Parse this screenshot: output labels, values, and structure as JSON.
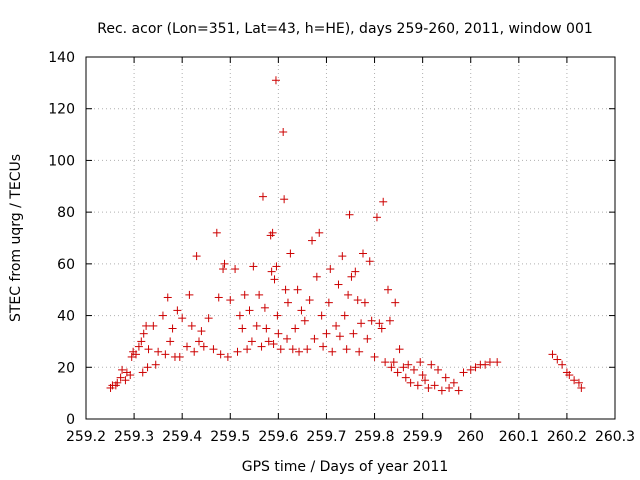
{
  "chart_data": {
    "type": "scatter",
    "title": "Rec. acor (Lon=351, Lat=43, h=HE), days 259-260, 2011, window 001",
    "xlabel": "GPS time / Days of year 2011",
    "ylabel": "STEC from uqrg / TECUs",
    "xlim": [
      259.2,
      260.3
    ],
    "ylim": [
      0,
      140
    ],
    "xticks": [
      259.2,
      259.3,
      259.4,
      259.5,
      259.6,
      259.7,
      259.8,
      259.9,
      260,
      260.1,
      260.2,
      260.3
    ],
    "xtick_labels": [
      "259.2",
      "259.3",
      "259.4",
      "259.5",
      "259.6",
      "259.7",
      "259.8",
      "259.9",
      "260",
      "260.1",
      "260.2",
      "260.3"
    ],
    "yticks": [
      0,
      20,
      40,
      60,
      80,
      100,
      120,
      140
    ],
    "ytick_labels": [
      "0",
      "20",
      "40",
      "60",
      "80",
      "100",
      "120",
      "140"
    ],
    "grid": true,
    "legend": "none",
    "marker": "plus",
    "color": "#cc0000",
    "series": [
      {
        "points": [
          [
            259.251,
            12
          ],
          [
            259.255,
            13
          ],
          [
            259.262,
            13
          ],
          [
            259.265,
            14
          ],
          [
            259.272,
            16
          ],
          [
            259.275,
            19
          ],
          [
            259.282,
            15
          ],
          [
            259.285,
            18
          ],
          [
            259.292,
            17
          ],
          [
            259.295,
            24
          ],
          [
            259.298,
            26
          ],
          [
            259.304,
            25
          ],
          [
            259.31,
            28
          ],
          [
            259.315,
            30
          ],
          [
            259.32,
            33
          ],
          [
            259.325,
            36
          ],
          [
            259.318,
            18
          ],
          [
            259.328,
            20
          ],
          [
            259.33,
            27
          ],
          [
            259.34,
            36
          ],
          [
            259.345,
            21
          ],
          [
            259.35,
            26
          ],
          [
            259.36,
            40
          ],
          [
            259.365,
            25
          ],
          [
            259.37,
            47
          ],
          [
            259.375,
            30
          ],
          [
            259.38,
            35
          ],
          [
            259.385,
            24
          ],
          [
            259.39,
            42
          ],
          [
            259.395,
            24
          ],
          [
            259.4,
            39
          ],
          [
            259.41,
            28
          ],
          [
            259.415,
            48
          ],
          [
            259.42,
            36
          ],
          [
            259.425,
            26
          ],
          [
            259.43,
            63
          ],
          [
            259.435,
            30
          ],
          [
            259.44,
            34
          ],
          [
            259.445,
            28
          ],
          [
            259.455,
            39
          ],
          [
            259.465,
            27
          ],
          [
            259.472,
            72
          ],
          [
            259.476,
            47
          ],
          [
            259.48,
            25
          ],
          [
            259.485,
            58
          ],
          [
            259.488,
            60
          ],
          [
            259.495,
            24
          ],
          [
            259.5,
            46
          ],
          [
            259.51,
            58
          ],
          [
            259.515,
            26
          ],
          [
            259.52,
            40
          ],
          [
            259.525,
            35
          ],
          [
            259.53,
            48
          ],
          [
            259.535,
            27
          ],
          [
            259.54,
            42
          ],
          [
            259.545,
            30
          ],
          [
            259.548,
            59
          ],
          [
            259.555,
            36
          ],
          [
            259.56,
            48
          ],
          [
            259.565,
            28
          ],
          [
            259.568,
            86
          ],
          [
            259.572,
            43
          ],
          [
            259.575,
            35
          ],
          [
            259.58,
            30
          ],
          [
            259.584,
            71
          ],
          [
            259.586,
            57
          ],
          [
            259.588,
            72
          ],
          [
            259.59,
            29
          ],
          [
            259.592,
            54
          ],
          [
            259.595,
            131
          ],
          [
            259.596,
            59
          ],
          [
            259.598,
            40
          ],
          [
            259.6,
            33
          ],
          [
            259.605,
            27
          ],
          [
            259.61,
            111
          ],
          [
            259.612,
            85
          ],
          [
            259.615,
            50
          ],
          [
            259.618,
            31
          ],
          [
            259.62,
            45
          ],
          [
            259.625,
            64
          ],
          [
            259.63,
            27
          ],
          [
            259.635,
            35
          ],
          [
            259.64,
            50
          ],
          [
            259.643,
            26
          ],
          [
            259.648,
            42
          ],
          [
            259.655,
            38
          ],
          [
            259.66,
            27
          ],
          [
            259.665,
            46
          ],
          [
            259.67,
            69
          ],
          [
            259.675,
            31
          ],
          [
            259.68,
            55
          ],
          [
            259.685,
            72
          ],
          [
            259.69,
            40
          ],
          [
            259.693,
            28
          ],
          [
            259.7,
            33
          ],
          [
            259.705,
            45
          ],
          [
            259.708,
            58
          ],
          [
            259.712,
            26
          ],
          [
            259.72,
            36
          ],
          [
            259.725,
            52
          ],
          [
            259.728,
            32
          ],
          [
            259.733,
            63
          ],
          [
            259.738,
            40
          ],
          [
            259.742,
            27
          ],
          [
            259.745,
            48
          ],
          [
            259.748,
            79
          ],
          [
            259.752,
            55
          ],
          [
            259.756,
            33
          ],
          [
            259.76,
            57
          ],
          [
            259.765,
            46
          ],
          [
            259.768,
            26
          ],
          [
            259.772,
            37
          ],
          [
            259.776,
            64
          ],
          [
            259.78,
            45
          ],
          [
            259.785,
            31
          ],
          [
            259.79,
            61
          ],
          [
            259.794,
            38
          ],
          [
            259.8,
            24
          ],
          [
            259.805,
            78
          ],
          [
            259.81,
            37
          ],
          [
            259.815,
            35
          ],
          [
            259.818,
            84
          ],
          [
            259.822,
            22
          ],
          [
            259.828,
            50
          ],
          [
            259.832,
            38
          ],
          [
            259.835,
            20
          ],
          [
            259.84,
            22
          ],
          [
            259.843,
            45
          ],
          [
            259.848,
            18
          ],
          [
            259.852,
            27
          ],
          [
            259.86,
            20
          ],
          [
            259.865,
            16
          ],
          [
            259.87,
            21
          ],
          [
            259.875,
            14
          ],
          [
            259.882,
            19
          ],
          [
            259.89,
            13
          ],
          [
            259.895,
            22
          ],
          [
            259.9,
            17
          ],
          [
            259.905,
            15
          ],
          [
            259.912,
            12
          ],
          [
            259.918,
            21
          ],
          [
            259.925,
            13
          ],
          [
            259.932,
            19
          ],
          [
            259.94,
            11
          ],
          [
            259.948,
            16
          ],
          [
            259.955,
            12
          ],
          [
            259.965,
            14
          ],
          [
            259.975,
            11
          ],
          [
            259.985,
            18
          ],
          [
            260.0,
            19
          ],
          [
            260.01,
            20
          ],
          [
            260.02,
            21
          ],
          [
            260.03,
            21
          ],
          [
            260.04,
            22
          ],
          [
            260.055,
            22
          ],
          [
            260.17,
            25
          ],
          [
            260.18,
            23
          ],
          [
            260.19,
            21
          ],
          [
            260.2,
            18
          ],
          [
            260.205,
            17
          ],
          [
            260.215,
            15
          ],
          [
            260.225,
            14
          ],
          [
            260.23,
            12
          ]
        ]
      }
    ]
  }
}
